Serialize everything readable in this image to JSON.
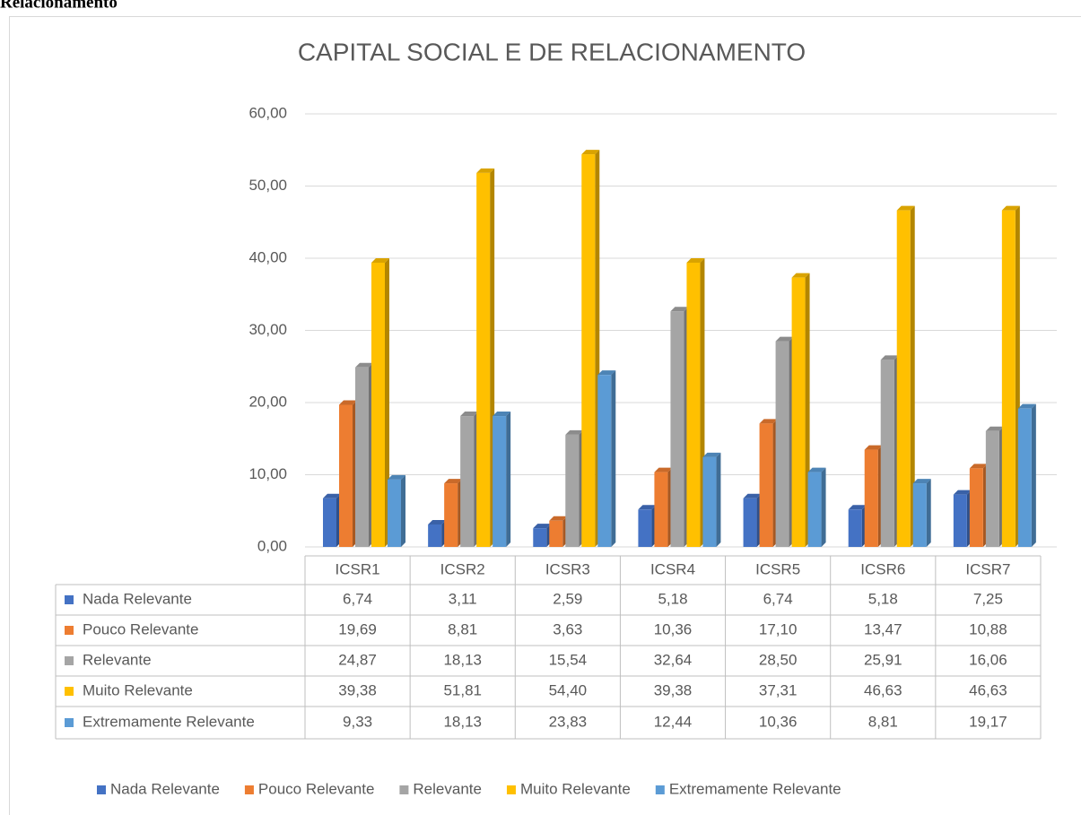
{
  "caption": "Relacionamento",
  "chart_data": {
    "type": "bar3d",
    "title": "CAPITAL SOCIAL E DE RELACIONAMENTO",
    "categories": [
      "ICSR1",
      "ICSR2",
      "ICSR3",
      "ICSR4",
      "ICSR5",
      "ICSR6",
      "ICSR7"
    ],
    "series": [
      {
        "name": "Nada Relevante",
        "color": "#4472c4",
        "values": [
          6.74,
          3.11,
          2.59,
          5.18,
          6.74,
          5.18,
          7.25
        ],
        "value_labels": [
          "6,74",
          "3,11",
          "2,59",
          "5,18",
          "6,74",
          "5,18",
          "7,25"
        ]
      },
      {
        "name": "Pouco Relevante",
        "color": "#ed7d31",
        "values": [
          19.69,
          8.81,
          3.63,
          10.36,
          17.1,
          13.47,
          10.88
        ],
        "value_labels": [
          "19,69",
          "8,81",
          "3,63",
          "10,36",
          "17,10",
          "13,47",
          "10,88"
        ]
      },
      {
        "name": "Relevante",
        "color": "#a5a5a5",
        "values": [
          24.87,
          18.13,
          15.54,
          32.64,
          28.5,
          25.91,
          16.06
        ],
        "value_labels": [
          "24,87",
          "18,13",
          "15,54",
          "32,64",
          "28,50",
          "25,91",
          "16,06"
        ]
      },
      {
        "name": "Muito Relevante",
        "color": "#ffc000",
        "values": [
          39.38,
          51.81,
          54.4,
          39.38,
          37.31,
          46.63,
          46.63
        ],
        "value_labels": [
          "39,38",
          "51,81",
          "54,40",
          "39,38",
          "37,31",
          "46,63",
          "46,63"
        ]
      },
      {
        "name": "Extremamente Relevante",
        "color": "#5b9bd5",
        "values": [
          9.33,
          18.13,
          23.83,
          12.44,
          10.36,
          8.81,
          19.17
        ],
        "value_labels": [
          "9,33",
          "18,13",
          "23,83",
          "12,44",
          "10,36",
          "8,81",
          "19,17"
        ]
      }
    ],
    "ylim": [
      0,
      60
    ],
    "yticks": [
      {
        "value": 0,
        "label": "0,00"
      },
      {
        "value": 10,
        "label": "10,00"
      },
      {
        "value": 20,
        "label": "20,00"
      },
      {
        "value": 30,
        "label": "30,00"
      },
      {
        "value": 40,
        "label": "40,00"
      },
      {
        "value": 50,
        "label": "50,00"
      },
      {
        "value": 60,
        "label": "60,00"
      }
    ],
    "grid": true,
    "legend": "bottom"
  }
}
